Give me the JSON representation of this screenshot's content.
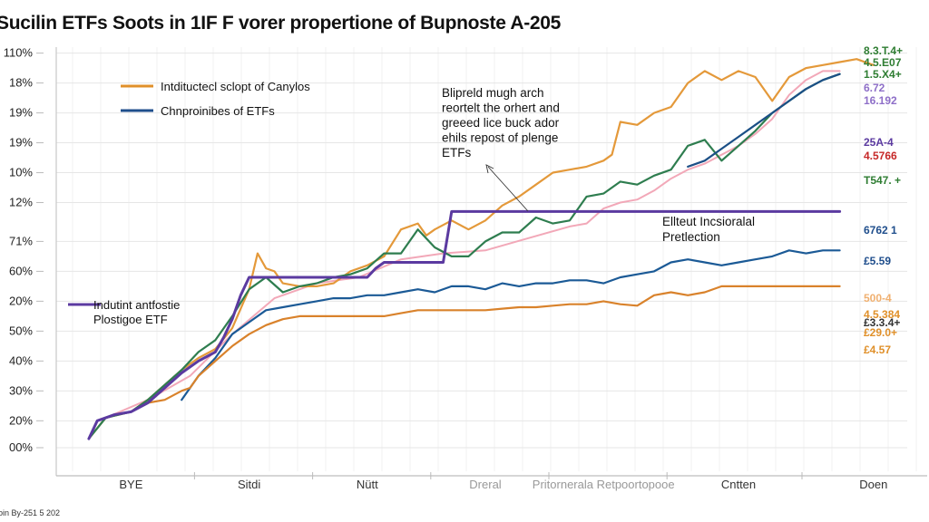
{
  "title": "Sucilin ETFs Soots in 1IF F vorer propertione of Bupnoste A-205",
  "footer": "oin By-251 5 202",
  "chart_data": {
    "type": "line",
    "title": "Sucilin ETFs Soots in 1IF F vorer propertione of Bupnoste A-205",
    "xlabel": "",
    "ylabel": "",
    "grid": true,
    "y_tick_labels": [
      "00%",
      "20%",
      "30%",
      "40%",
      "50%",
      "20%",
      "60%",
      "71%",
      "12%",
      "10%",
      "19%",
      "19%",
      "18%",
      "110%"
    ],
    "y_tick_values": [
      0,
      0.9,
      1.9,
      2.9,
      3.9,
      4.9,
      5.9,
      6.9,
      8.2,
      9.2,
      10.2,
      11.2,
      12.2,
      13.2
    ],
    "ylim": [
      0,
      13.4
    ],
    "x_tick_labels": [
      "BYE",
      "Sitdi",
      "Nütt",
      "Dreral",
      "Pritornerala Retpoortopooe",
      "Cntten",
      "Doen"
    ],
    "x_tick_positions": [
      8,
      22,
      36,
      50,
      64,
      80,
      96
    ],
    "xlim": [
      0,
      100
    ],
    "legend": [
      {
        "label": "Intdituctecl sclopt of Canylos",
        "color": "#e0902a",
        "placement": "top-left"
      },
      {
        "label": "Chnproinibes of ETFs",
        "color": "#1f4e8c",
        "placement": "top-left"
      },
      {
        "label": "Indutint antfostie Plostigoe ETF",
        "color": "#5b3aa0",
        "placement": "center-left"
      }
    ],
    "annotations": [
      {
        "text": [
          "Blipreld mugh arch",
          "reortelt the orhert and",
          "greeed lice buck ador",
          "ehils repost of plenge",
          "ETFs"
        ],
        "placement": "top-center",
        "arrow": true
      },
      {
        "text": [
          "Ellteut Incsioralal",
          "Pretlection"
        ],
        "placement": "right-middle",
        "arrow": false
      }
    ],
    "end_labels": [
      {
        "text": "8.3.T.4+",
        "color": "#2e7d32"
      },
      {
        "text": "4.5.E07",
        "color": "#2e7d32"
      },
      {
        "text": "1.5.X4+",
        "color": "#2e7d32"
      },
      {
        "text": "6.72",
        "color": "#8e6fc8"
      },
      {
        "text": "16.192",
        "color": "#8e6fc8"
      },
      {
        "text": "25A-4",
        "color": "#5b3aa0"
      },
      {
        "text": "4.5766",
        "color": "#c62828"
      },
      {
        "text": "T547. +",
        "color": "#2e7d32"
      },
      {
        "text": "6762 1",
        "color": "#1f4e8c"
      },
      {
        "text": "£5.59",
        "color": "#1f4e8c"
      },
      {
        "text": "500-4",
        "color": "#f0b070"
      },
      {
        "text": "4.5.384",
        "color": "#e0902a"
      },
      {
        "text": "£3.3.4+",
        "color": "#333333"
      },
      {
        "text": "£29.0+",
        "color": "#e0902a"
      },
      {
        "text": "£4.57",
        "color": "#e0902a"
      }
    ],
    "series": [
      {
        "name": "Orange upper",
        "color": "#e4993a",
        "x": [
          3,
          5,
          8,
          10,
          12,
          14,
          16,
          18,
          20,
          22,
          23,
          24,
          25,
          26,
          28,
          30,
          32,
          34,
          36,
          38,
          40,
          42,
          43,
          44,
          46,
          48,
          50,
          52,
          54,
          56,
          58,
          60,
          62,
          64,
          65,
          66,
          68,
          70,
          72,
          74,
          76,
          78,
          80,
          82,
          84,
          86,
          88,
          90,
          92,
          94,
          96
        ],
        "y": [
          0.3,
          1.0,
          1.2,
          1.6,
          2.1,
          2.6,
          3.0,
          3.3,
          4.0,
          5.3,
          6.5,
          6.0,
          5.9,
          5.5,
          5.4,
          5.4,
          5.5,
          5.9,
          6.1,
          6.4,
          7.3,
          7.5,
          7.1,
          7.3,
          7.6,
          7.3,
          7.6,
          8.1,
          8.4,
          8.8,
          9.2,
          9.3,
          9.4,
          9.6,
          9.8,
          10.9,
          10.8,
          11.2,
          11.4,
          12.2,
          12.6,
          12.3,
          12.6,
          12.4,
          11.6,
          12.4,
          12.7,
          12.8,
          12.9,
          13.0,
          12.8
        ]
      },
      {
        "name": "Green",
        "color": "#2e7d4f",
        "x": [
          3,
          5,
          8,
          10,
          12,
          14,
          16,
          18,
          20,
          22,
          24,
          26,
          28,
          30,
          32,
          34,
          36,
          38,
          40,
          42,
          44,
          46,
          48,
          50,
          52,
          54,
          56,
          58,
          60,
          62,
          64,
          66,
          68,
          70,
          72,
          74,
          76,
          78,
          80,
          82,
          84,
          86,
          88,
          90,
          92
        ],
        "y": [
          0.3,
          1.0,
          1.2,
          1.6,
          2.1,
          2.6,
          3.2,
          3.6,
          4.4,
          5.3,
          5.7,
          5.2,
          5.4,
          5.5,
          5.7,
          5.8,
          6.0,
          6.5,
          6.5,
          7.3,
          6.7,
          6.4,
          6.4,
          6.9,
          7.2,
          7.2,
          7.7,
          7.5,
          7.6,
          8.4,
          8.5,
          8.9,
          8.8,
          9.1,
          9.3,
          10.1,
          10.3,
          9.6,
          10.1,
          10.6,
          11.2,
          11.6,
          12.0,
          12.3,
          12.5
        ]
      },
      {
        "name": "Pink",
        "color": "#f2a8b8",
        "x": [
          5,
          10,
          15,
          20,
          25,
          30,
          35,
          40,
          45,
          50,
          55,
          60,
          62,
          64,
          66,
          68,
          70,
          72,
          74,
          76,
          78,
          80,
          82,
          84,
          86,
          88,
          90,
          92
        ],
        "y": [
          1.0,
          1.6,
          2.4,
          3.8,
          5.0,
          5.5,
          5.7,
          6.3,
          6.5,
          6.6,
          7.0,
          7.4,
          7.5,
          8.0,
          8.2,
          8.3,
          8.6,
          9.0,
          9.3,
          9.5,
          9.8,
          10.1,
          10.5,
          11.0,
          11.8,
          12.3,
          12.6,
          12.6
        ]
      },
      {
        "name": "Dark blue upper",
        "color": "#1b4f86",
        "x": [
          74,
          76,
          78,
          80,
          82,
          84,
          86,
          88,
          90,
          92
        ],
        "y": [
          9.4,
          9.6,
          10.0,
          10.4,
          10.8,
          11.2,
          11.6,
          12.0,
          12.3,
          12.5
        ]
      },
      {
        "name": "Purple step",
        "color": "#5b3aa0",
        "x": [
          3,
          4,
          6,
          8,
          10,
          12,
          14,
          16,
          18,
          19,
          20,
          21,
          22,
          30,
          36,
          37,
          38,
          45,
          46,
          56,
          57,
          58,
          60,
          62,
          92
        ],
        "y": [
          0.3,
          0.9,
          1.1,
          1.2,
          1.5,
          2.0,
          2.5,
          2.9,
          3.2,
          3.7,
          4.3,
          5.1,
          5.7,
          5.7,
          5.7,
          6.0,
          6.2,
          6.2,
          7.9,
          7.9,
          7.9,
          7.9,
          7.9,
          7.9,
          7.9
        ]
      },
      {
        "name": "Blue lower",
        "color": "#1b5a96",
        "x": [
          14,
          16,
          18,
          20,
          22,
          24,
          26,
          28,
          30,
          32,
          34,
          36,
          38,
          40,
          42,
          44,
          46,
          48,
          50,
          52,
          54,
          56,
          58,
          60,
          62,
          64,
          66,
          68,
          70,
          72,
          74,
          76,
          78,
          80,
          82,
          84,
          86,
          88,
          90,
          92
        ],
        "y": [
          1.6,
          2.4,
          3.0,
          3.8,
          4.2,
          4.6,
          4.7,
          4.8,
          4.9,
          5.0,
          5.0,
          5.1,
          5.1,
          5.2,
          5.3,
          5.2,
          5.4,
          5.4,
          5.3,
          5.5,
          5.4,
          5.5,
          5.5,
          5.6,
          5.6,
          5.5,
          5.7,
          5.8,
          5.9,
          6.2,
          6.3,
          6.2,
          6.1,
          6.2,
          6.3,
          6.4,
          6.6,
          6.5,
          6.6,
          6.6
        ]
      },
      {
        "name": "Orange lower",
        "color": "#d9822b",
        "x": [
          10,
          12,
          14,
          15,
          16,
          18,
          20,
          22,
          24,
          26,
          28,
          30,
          32,
          34,
          36,
          38,
          40,
          42,
          44,
          46,
          48,
          50,
          52,
          54,
          56,
          58,
          60,
          62,
          64,
          66,
          68,
          70,
          72,
          74,
          76,
          78,
          80,
          82,
          84,
          86,
          88,
          90,
          92
        ],
        "y": [
          1.5,
          1.6,
          1.9,
          2.0,
          2.4,
          2.9,
          3.4,
          3.8,
          4.1,
          4.3,
          4.4,
          4.4,
          4.4,
          4.4,
          4.4,
          4.4,
          4.5,
          4.6,
          4.6,
          4.6,
          4.6,
          4.6,
          4.65,
          4.7,
          4.7,
          4.75,
          4.8,
          4.8,
          4.9,
          4.8,
          4.75,
          5.1,
          5.2,
          5.1,
          5.2,
          5.4,
          5.4,
          5.4,
          5.4,
          5.4,
          5.4,
          5.4,
          5.4
        ]
      }
    ]
  }
}
